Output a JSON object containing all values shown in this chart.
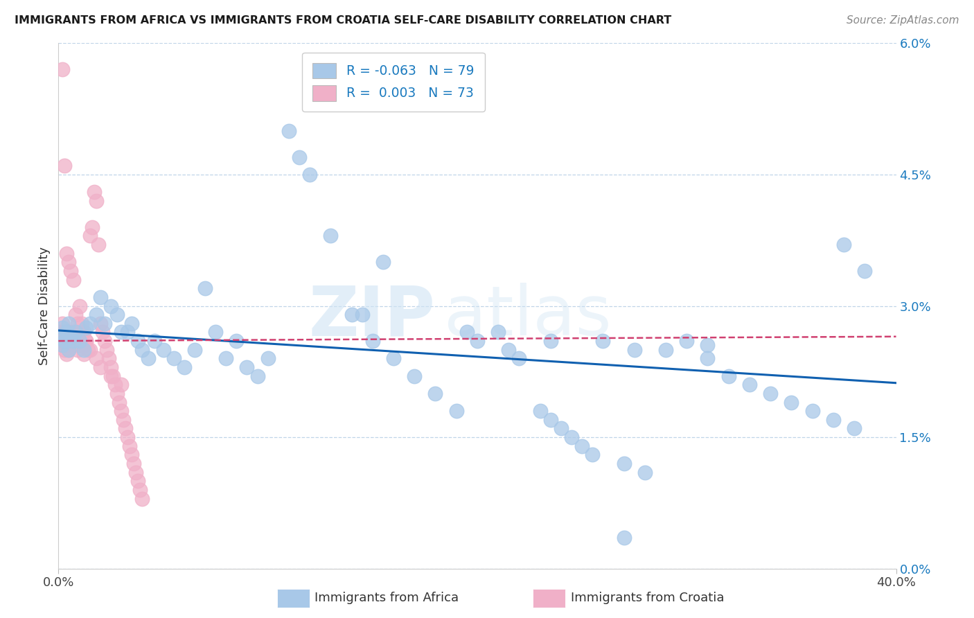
{
  "title": "IMMIGRANTS FROM AFRICA VS IMMIGRANTS FROM CROATIA SELF-CARE DISABILITY CORRELATION CHART",
  "source": "Source: ZipAtlas.com",
  "ylabel": "Self-Care Disability",
  "africa_legend": "R = -0.063   N = 79",
  "croatia_legend": "R =  0.003   N = 73",
  "legend_label_africa": "Immigrants from Africa",
  "legend_label_croatia": "Immigrants from Croatia",
  "africa_color": "#a8c8e8",
  "africa_line_color": "#1060b0",
  "croatia_color": "#f0b0c8",
  "croatia_line_color": "#d04070",
  "watermark_zip": "ZIP",
  "watermark_atlas": "atlas",
  "xlim": [
    0.0,
    0.4
  ],
  "ylim": [
    0.0,
    6.0
  ],
  "ytick_vals": [
    0.0,
    1.5,
    3.0,
    4.5,
    6.0
  ],
  "africa_x": [
    0.001,
    0.002,
    0.002,
    0.003,
    0.004,
    0.005,
    0.005,
    0.006,
    0.007,
    0.008,
    0.01,
    0.012,
    0.013,
    0.015,
    0.018,
    0.02,
    0.022,
    0.025,
    0.028,
    0.03,
    0.033,
    0.035,
    0.038,
    0.04,
    0.043,
    0.046,
    0.05,
    0.055,
    0.06,
    0.065,
    0.07,
    0.075,
    0.08,
    0.085,
    0.09,
    0.095,
    0.1,
    0.11,
    0.115,
    0.12,
    0.13,
    0.14,
    0.15,
    0.16,
    0.17,
    0.18,
    0.19,
    0.2,
    0.21,
    0.215,
    0.22,
    0.23,
    0.235,
    0.24,
    0.245,
    0.25,
    0.255,
    0.26,
    0.27,
    0.28,
    0.29,
    0.3,
    0.31,
    0.32,
    0.33,
    0.34,
    0.35,
    0.36,
    0.37,
    0.38,
    0.155,
    0.195,
    0.235,
    0.275,
    0.375,
    0.385,
    0.27,
    0.31,
    0.145
  ],
  "africa_y": [
    2.65,
    2.55,
    2.75,
    2.6,
    2.7,
    2.5,
    2.8,
    2.65,
    2.6,
    2.7,
    2.6,
    2.5,
    2.75,
    2.8,
    2.9,
    3.1,
    2.8,
    3.0,
    2.9,
    2.7,
    2.7,
    2.8,
    2.6,
    2.5,
    2.4,
    2.6,
    2.5,
    2.4,
    2.3,
    2.5,
    3.2,
    2.7,
    2.4,
    2.6,
    2.3,
    2.2,
    2.4,
    5.0,
    4.7,
    4.5,
    3.8,
    2.9,
    2.6,
    2.4,
    2.2,
    2.0,
    1.8,
    2.6,
    2.7,
    2.5,
    2.4,
    1.8,
    1.7,
    1.6,
    1.5,
    1.4,
    1.3,
    2.6,
    1.2,
    1.1,
    2.5,
    2.6,
    2.4,
    2.2,
    2.1,
    2.0,
    1.9,
    1.8,
    1.7,
    1.6,
    3.5,
    2.7,
    2.6,
    2.5,
    3.7,
    3.4,
    0.35,
    2.55,
    2.9
  ],
  "croatia_x": [
    0.001,
    0.001,
    0.002,
    0.002,
    0.002,
    0.003,
    0.003,
    0.003,
    0.004,
    0.004,
    0.004,
    0.005,
    0.005,
    0.005,
    0.006,
    0.006,
    0.007,
    0.007,
    0.008,
    0.008,
    0.009,
    0.009,
    0.01,
    0.01,
    0.011,
    0.011,
    0.012,
    0.012,
    0.013,
    0.014,
    0.015,
    0.016,
    0.017,
    0.018,
    0.019,
    0.02,
    0.021,
    0.022,
    0.023,
    0.024,
    0.025,
    0.026,
    0.027,
    0.028,
    0.029,
    0.03,
    0.031,
    0.032,
    0.033,
    0.034,
    0.035,
    0.036,
    0.037,
    0.038,
    0.039,
    0.04,
    0.002,
    0.003,
    0.004,
    0.005,
    0.006,
    0.007,
    0.008,
    0.009,
    0.01,
    0.011,
    0.012,
    0.013,
    0.015,
    0.018,
    0.02,
    0.025,
    0.03
  ],
  "croatia_y": [
    2.7,
    2.6,
    2.8,
    2.65,
    2.55,
    2.7,
    2.6,
    2.5,
    2.65,
    2.55,
    2.45,
    2.6,
    2.5,
    2.7,
    2.55,
    2.65,
    2.6,
    2.7,
    2.55,
    2.65,
    2.5,
    2.6,
    2.65,
    2.55,
    2.7,
    2.6,
    2.55,
    2.45,
    2.6,
    2.5,
    3.8,
    3.9,
    4.3,
    4.2,
    3.7,
    2.8,
    2.7,
    2.6,
    2.5,
    2.4,
    2.3,
    2.2,
    2.1,
    2.0,
    1.9,
    1.8,
    1.7,
    1.6,
    1.5,
    1.4,
    1.3,
    1.2,
    1.1,
    1.0,
    0.9,
    0.8,
    5.7,
    4.6,
    3.6,
    3.5,
    3.4,
    3.3,
    2.9,
    2.8,
    3.0,
    2.8,
    2.7,
    2.6,
    2.5,
    2.4,
    2.3,
    2.2,
    2.1
  ]
}
